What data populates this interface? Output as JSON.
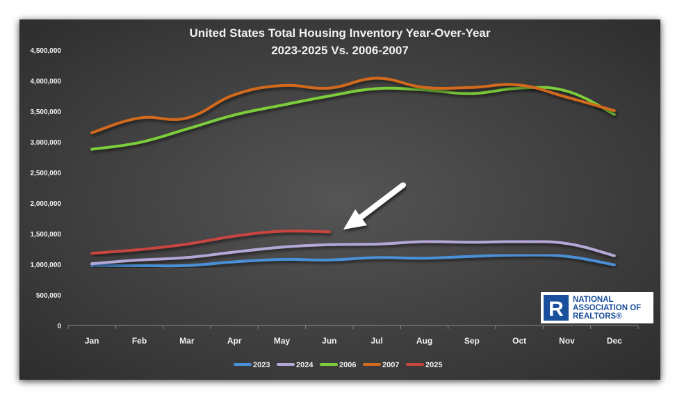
{
  "chart_data": {
    "type": "line",
    "title": "United States Total Housing Inventory Year-Over-Year",
    "subtitle": "2023-2025 Vs. 2006-2007",
    "categories": [
      "Jan",
      "Feb",
      "Mar",
      "Apr",
      "May",
      "Jun",
      "Jul",
      "Aug",
      "Sep",
      "Oct",
      "Nov",
      "Dec"
    ],
    "ylim": [
      0,
      4500000
    ],
    "yticks": [
      0,
      500000,
      1000000,
      1500000,
      2000000,
      2500000,
      3000000,
      3500000,
      4000000,
      4500000
    ],
    "ytick_labels": [
      "0",
      "500,000",
      "1,000,000",
      "1,500,000",
      "2,000,000",
      "2,500,000",
      "3,000,000",
      "3,500,000",
      "4,000,000",
      "4,500,000"
    ],
    "grid": false,
    "legend_position": "bottom",
    "series": [
      {
        "name": "2023",
        "color": "#4a90d6",
        "values": [
          980000,
          980000,
          980000,
          1040000,
          1080000,
          1070000,
          1110000,
          1100000,
          1130000,
          1150000,
          1130000,
          990000
        ]
      },
      {
        "name": "2024",
        "color": "#b4a7d6",
        "values": [
          1010000,
          1070000,
          1110000,
          1200000,
          1280000,
          1320000,
          1330000,
          1370000,
          1360000,
          1370000,
          1340000,
          1140000
        ]
      },
      {
        "name": "2006",
        "color": "#7ccd3b",
        "values": [
          2880000,
          2990000,
          3210000,
          3440000,
          3600000,
          3750000,
          3870000,
          3850000,
          3790000,
          3880000,
          3830000,
          3450000
        ]
      },
      {
        "name": "2007",
        "color": "#d2691e",
        "values": [
          3150000,
          3390000,
          3390000,
          3770000,
          3920000,
          3880000,
          4040000,
          3890000,
          3890000,
          3930000,
          3730000,
          3510000
        ]
      },
      {
        "name": "2025",
        "color": "#c8453f",
        "values": [
          1180000,
          1240000,
          1330000,
          1460000,
          1540000,
          1530000,
          null,
          null,
          null,
          null,
          null,
          null
        ]
      }
    ],
    "annotations": [
      {
        "type": "arrow",
        "color": "#ffffff",
        "points_to": {
          "category": "Jun",
          "series": "2025"
        }
      }
    ]
  },
  "logo": {
    "line1": "NATIONAL",
    "line2": "ASSOCIATION OF",
    "line3": "REALTORS®",
    "letter": "R",
    "color": "#1a4f9c"
  }
}
